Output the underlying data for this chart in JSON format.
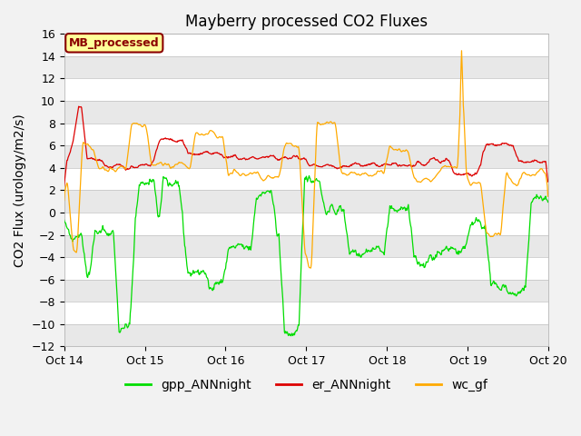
{
  "title": "Mayberry processed CO2 Fluxes",
  "ylabel": "CO2 Flux (urology/m2/s)",
  "ylim": [
    -12,
    16
  ],
  "yticks": [
    -12,
    -10,
    -8,
    -6,
    -4,
    -2,
    0,
    2,
    4,
    6,
    8,
    10,
    12,
    14,
    16
  ],
  "xtick_labels": [
    "Oct 14",
    "Oct 15",
    "Oct 16",
    "Oct 17",
    "Oct 18",
    "Oct 19",
    "Oct 20"
  ],
  "fig_facecolor": "#f2f2f2",
  "band_light": "#e8e8e8",
  "band_dark": "#ffffff",
  "line_green": "#00dd00",
  "line_red": "#dd0000",
  "line_orange": "#ffaa00",
  "legend_box_label": "MB_processed",
  "legend_box_facecolor": "#ffff99",
  "legend_box_edgecolor": "#8b0000",
  "legend_box_textcolor": "#8b0000",
  "legend_labels": [
    "gpp_ANNnight",
    "er_ANNnight",
    "wc_gf"
  ],
  "n_points": 864,
  "title_fontsize": 12,
  "label_fontsize": 10,
  "tick_fontsize": 9
}
